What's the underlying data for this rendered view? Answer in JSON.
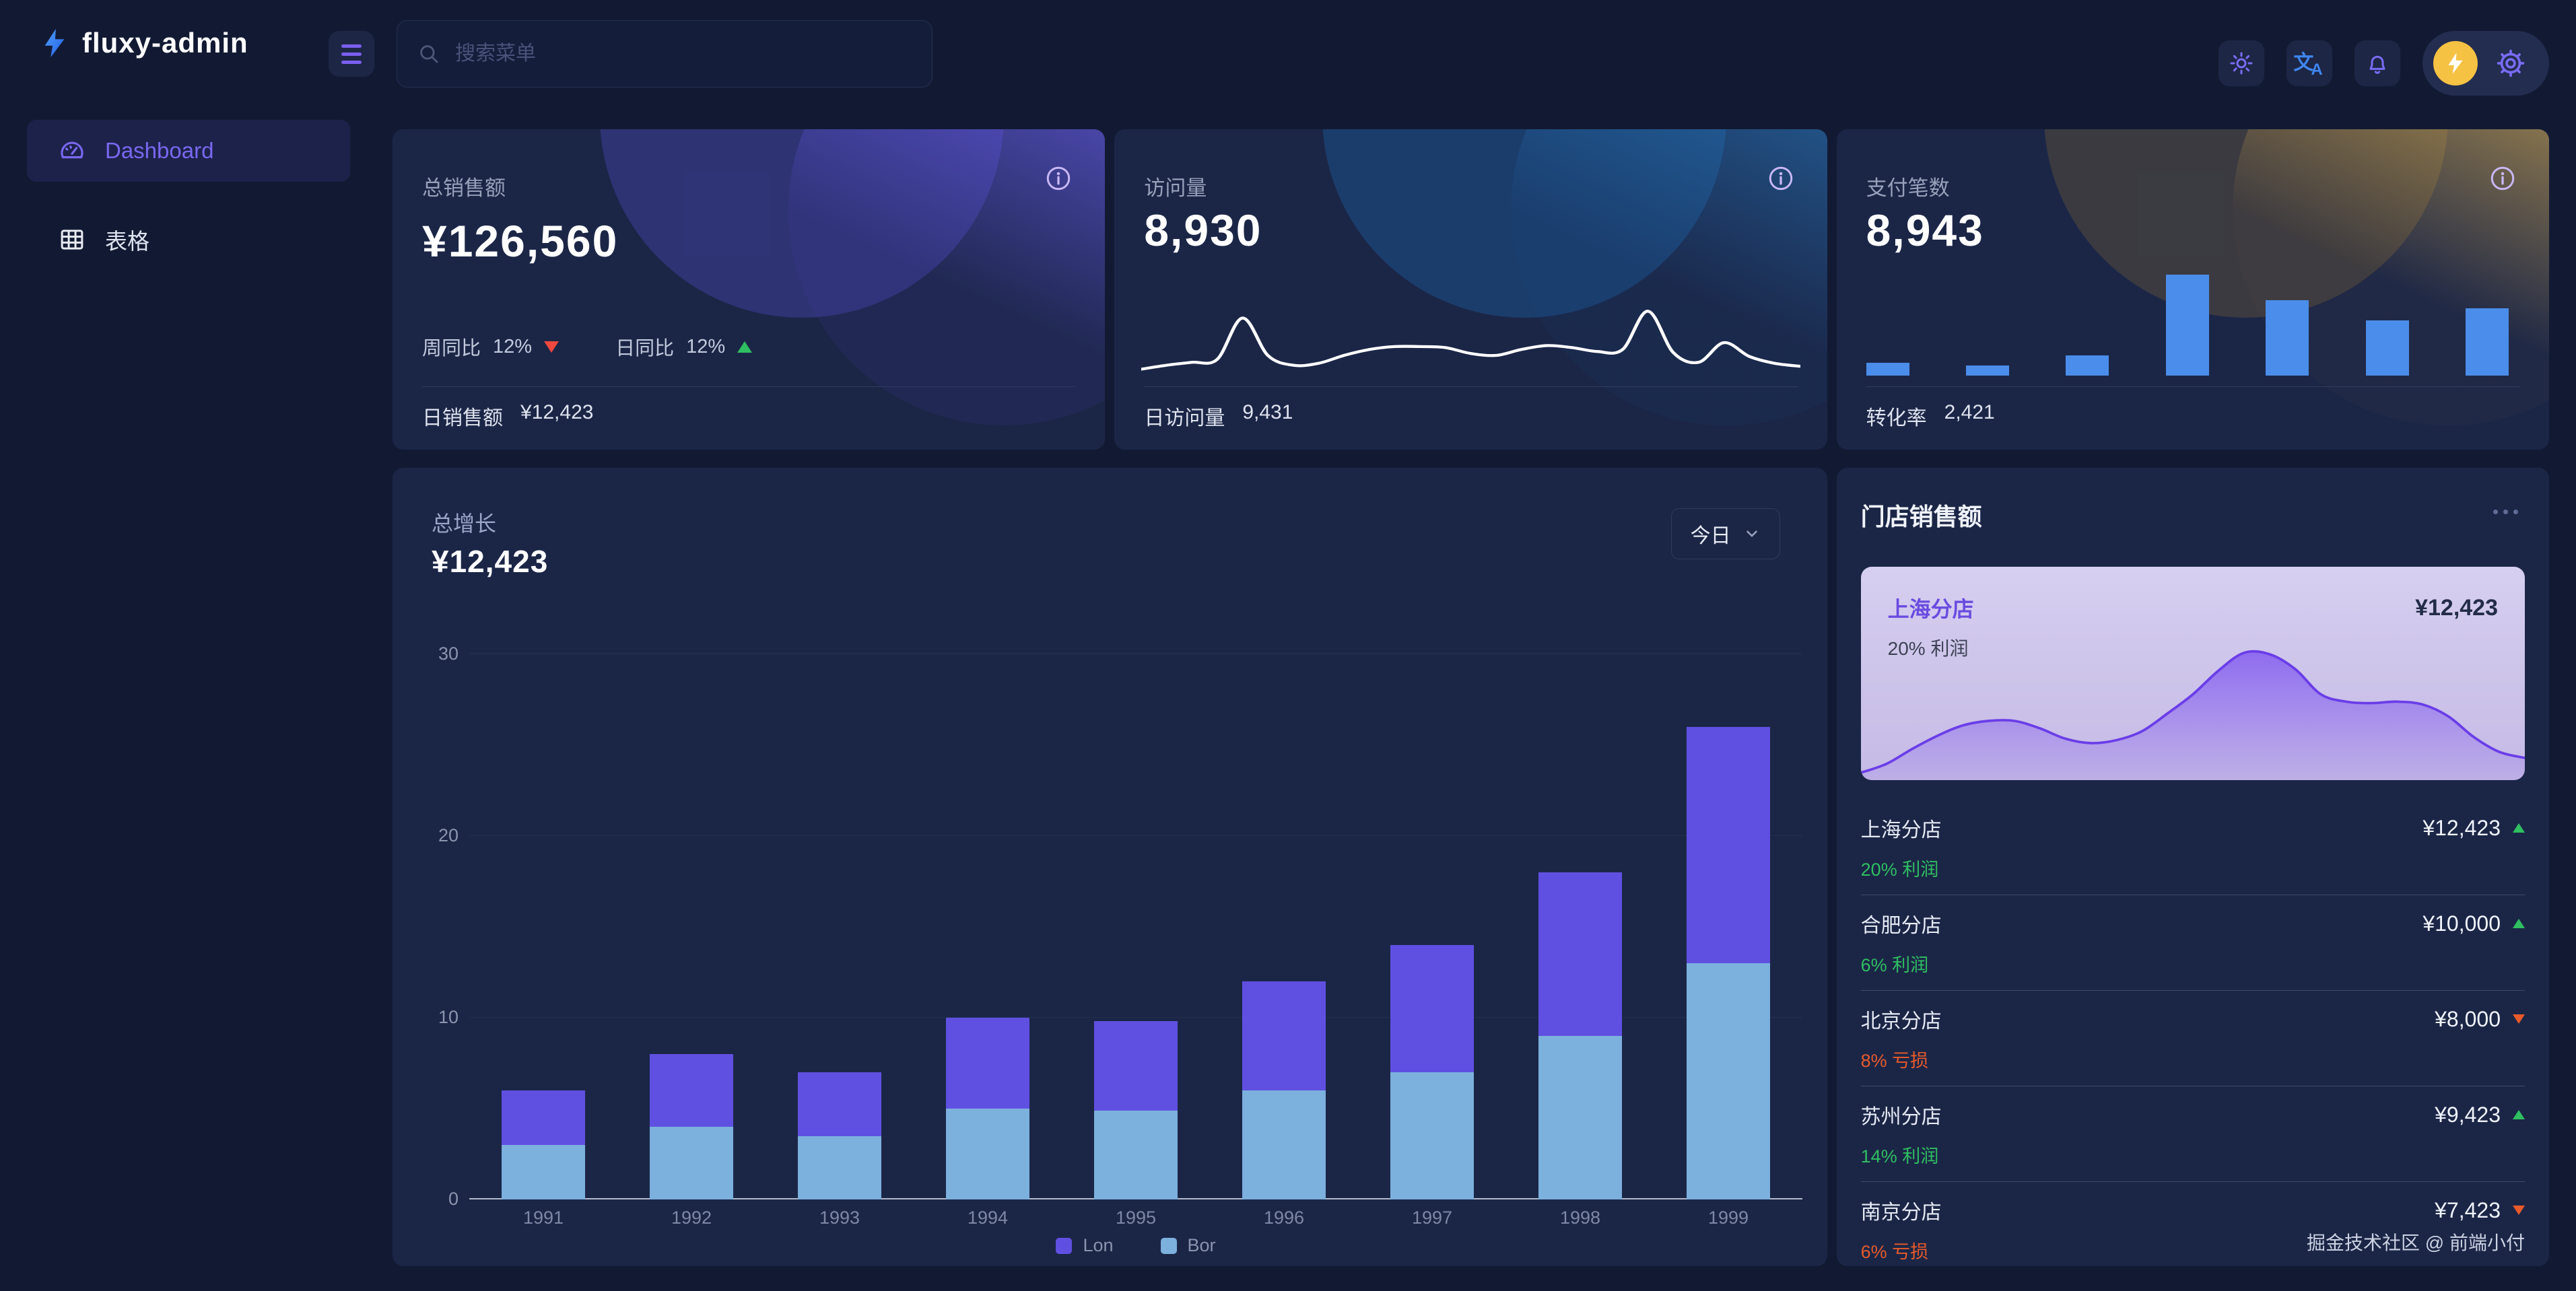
{
  "colors": {
    "background": "#121a33",
    "card": "#1b2647",
    "accent_purple": "#6050e1",
    "accent_light_blue": "#7cb0dd",
    "mini_bar_blue": "#4b8dea",
    "up_green": "#2fbf61",
    "down_red": "#f0483e",
    "loss_orange": "#e85a2a",
    "avatar_yellow": "#f6c244"
  },
  "topbar": {
    "logo_text": "fluxy-admin",
    "search_placeholder": "搜索菜单"
  },
  "sidebar": {
    "items": [
      {
        "label": "Dashboard",
        "active": true
      },
      {
        "label": "表格",
        "active": false
      }
    ]
  },
  "stat_cards": [
    {
      "title": "总销售额",
      "value": "¥126,560",
      "trends": [
        {
          "label": "周同比",
          "value": "12%",
          "dir": "down"
        },
        {
          "label": "日同比",
          "value": "12%",
          "dir": "up"
        }
      ],
      "footer_label": "日销售额",
      "footer_value": "¥12,423"
    },
    {
      "title": "访问量",
      "value": "8,930",
      "footer_label": "日访问量",
      "footer_value": "9,431"
    },
    {
      "title": "支付笔数",
      "value": "8,943",
      "footer_label": "转化率",
      "footer_value": "2,421"
    }
  ],
  "growth": {
    "title": "总增长",
    "value": "¥12,423",
    "range_label": "今日"
  },
  "stores": {
    "title": "门店销售额",
    "highlight": {
      "name": "上海分店",
      "value": "¥12,423",
      "sub": "20% 利润"
    },
    "rows": [
      {
        "name": "上海分店",
        "value": "¥12,423",
        "dir": "up",
        "sub": "20% 利润",
        "sub_type": "profit"
      },
      {
        "name": "合肥分店",
        "value": "¥10,000",
        "dir": "up",
        "sub": "6% 利润",
        "sub_type": "profit"
      },
      {
        "name": "北京分店",
        "value": "¥8,000",
        "dir": "down",
        "sub": "8% 亏损",
        "sub_type": "loss"
      },
      {
        "name": "苏州分店",
        "value": "¥9,423",
        "dir": "up",
        "sub": "14% 利润",
        "sub_type": "profit"
      },
      {
        "name": "南京分店",
        "value": "¥7,423",
        "dir": "down",
        "sub": "6% 亏损",
        "sub_type": "loss"
      }
    ]
  },
  "credit": "掘金技术社区 @ 前端小付",
  "chart_data": [
    {
      "id": "visits",
      "type": "line",
      "title": "访问量趋势 (无坐标轴迷你图)",
      "values": [
        12,
        16,
        19,
        22,
        64,
        26,
        16,
        18,
        26,
        32,
        35,
        35,
        34,
        28,
        26,
        32,
        36,
        34,
        30,
        32,
        71,
        29,
        19,
        39,
        25,
        18,
        15
      ],
      "note": "sparkline, values estimated on 0-100 relative scale",
      "line_color": "#ffffff"
    },
    {
      "id": "payments",
      "type": "bar",
      "title": "支付笔数迷你柱状图",
      "values": [
        1.3,
        1,
        2,
        10,
        7.5,
        5.5,
        6.7
      ],
      "note": "7 unlabeled bars, values estimated relative to max=10",
      "bar_color": "#4b8dea"
    },
    {
      "id": "growth",
      "type": "bar",
      "stacked": true,
      "title": "总增长",
      "categories": [
        "1991",
        "1992",
        "1993",
        "1994",
        "1995",
        "1996",
        "1997",
        "1998",
        "1999"
      ],
      "series": [
        {
          "name": "Lon",
          "color": "#6050e1",
          "values": [
            3,
            4,
            3.5,
            5,
            4.9,
            6,
            7,
            9,
            13
          ]
        },
        {
          "name": "Bor",
          "color": "#7cb0dd",
          "values": [
            3,
            4,
            3.5,
            5,
            4.9,
            6,
            7,
            9,
            13
          ]
        }
      ],
      "ylim": [
        0,
        30
      ],
      "yticks": [
        0,
        10,
        20,
        30
      ],
      "grid": true,
      "legend_position": "bottom"
    },
    {
      "id": "shanghai_area",
      "type": "area",
      "title": "上海分店销售走势 (无坐标轴)",
      "values": [
        5,
        11,
        21,
        30,
        37,
        40,
        40,
        35,
        28,
        25,
        27,
        33,
        45,
        58,
        74,
        86,
        85,
        75,
        58,
        53,
        52,
        53,
        51,
        43,
        29,
        19,
        15
      ],
      "note": "smooth area sparkline, values estimated on 0-100 relative scale",
      "line_color": "#6a3de8",
      "fill_from": "rgba(124,82,240,0.78)",
      "fill_to": "rgba(124,82,240,0.10)"
    }
  ]
}
